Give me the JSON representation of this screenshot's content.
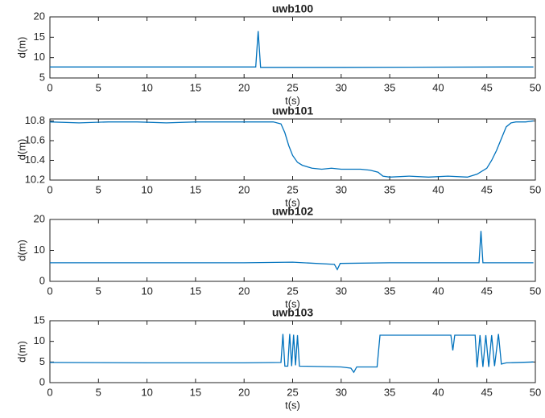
{
  "chart_data": [
    {
      "type": "line",
      "title": "uwb100",
      "x_label": "t(s)",
      "y_label": "d(m)",
      "xlim": [
        0,
        50
      ],
      "ylim": [
        5,
        20
      ],
      "xticks": [
        0,
        5,
        10,
        15,
        20,
        25,
        30,
        35,
        40,
        45,
        50
      ],
      "yticks": [
        5,
        10,
        15,
        20
      ],
      "series": [
        {
          "color": "#0072bd",
          "x": [
            0,
            10,
            21.2,
            21.45,
            21.7,
            30,
            47,
            49.8
          ],
          "values": [
            7.7,
            7.7,
            7.7,
            16.5,
            7.6,
            7.6,
            7.7,
            7.7
          ]
        }
      ]
    },
    {
      "type": "line",
      "title": "uwb101",
      "x_label": "t(s)",
      "y_label": "d(m)",
      "xlim": [
        0,
        50
      ],
      "ylim": [
        10.2,
        10.82
      ],
      "xticks": [
        0,
        5,
        10,
        15,
        20,
        25,
        30,
        35,
        40,
        45,
        50
      ],
      "yticks": [
        10.2,
        10.4,
        10.6,
        10.8
      ],
      "series": [
        {
          "color": "#0072bd",
          "x": [
            0,
            3,
            6,
            9,
            12,
            15,
            18,
            21,
            23,
            23.8,
            24.2,
            24.6,
            25,
            25.5,
            26,
            27,
            28,
            29,
            30,
            31,
            32,
            33,
            33.8,
            34.3,
            35,
            37,
            39,
            41,
            43,
            44,
            45,
            45.5,
            46,
            46.5,
            47,
            47.5,
            48,
            49,
            49.8
          ],
          "values": [
            10.79,
            10.78,
            10.79,
            10.79,
            10.78,
            10.79,
            10.79,
            10.79,
            10.79,
            10.77,
            10.68,
            10.55,
            10.45,
            10.38,
            10.35,
            10.32,
            10.31,
            10.32,
            10.31,
            10.31,
            10.31,
            10.3,
            10.28,
            10.24,
            10.23,
            10.24,
            10.23,
            10.24,
            10.23,
            10.26,
            10.32,
            10.4,
            10.5,
            10.62,
            10.74,
            10.78,
            10.79,
            10.79,
            10.8
          ]
        }
      ]
    },
    {
      "type": "line",
      "title": "uwb102",
      "x_label": "t(s)",
      "y_label": "d(m)",
      "xlim": [
        0,
        50
      ],
      "ylim": [
        0,
        20
      ],
      "xticks": [
        0,
        5,
        10,
        15,
        20,
        25,
        30,
        35,
        40,
        45,
        50
      ],
      "yticks": [
        0,
        10,
        20
      ],
      "series": [
        {
          "color": "#0072bd",
          "x": [
            0,
            10,
            20,
            25,
            29.3,
            29.6,
            29.9,
            35,
            44.2,
            44.4,
            44.6,
            49.8
          ],
          "values": [
            6,
            6,
            6,
            6.2,
            5.5,
            3.8,
            5.8,
            6,
            6,
            16.3,
            6,
            6
          ]
        }
      ]
    },
    {
      "type": "line",
      "title": "uwb103",
      "x_label": "t(s)",
      "y_label": "d(m)",
      "xlim": [
        0,
        50
      ],
      "ylim": [
        0,
        15
      ],
      "xticks": [
        0,
        5,
        10,
        15,
        20,
        25,
        30,
        35,
        40,
        45,
        50
      ],
      "yticks": [
        0,
        5,
        10,
        15
      ],
      "series": [
        {
          "color": "#0072bd",
          "x": [
            0,
            10,
            20,
            23.8,
            24,
            24.2,
            24.5,
            24.7,
            24.9,
            25.1,
            25.3,
            25.5,
            25.7,
            28,
            30,
            31,
            31.3,
            31.6,
            33.7,
            34,
            41.3,
            41.5,
            41.7,
            43.8,
            44,
            44.3,
            44.6,
            44.9,
            45.2,
            45.5,
            45.8,
            46.2,
            46.5,
            47,
            49.8
          ],
          "values": [
            4.9,
            4.8,
            4.8,
            4.9,
            11.8,
            4,
            4,
            11.8,
            4,
            11.6,
            4.2,
            11.5,
            4,
            3.9,
            3.8,
            3.5,
            2.5,
            3.8,
            3.8,
            11.5,
            11.5,
            7.8,
            11.5,
            11.5,
            3.7,
            11.5,
            3.8,
            11.5,
            3.8,
            11.5,
            4,
            11.8,
            4.5,
            4.8,
            5
          ]
        }
      ]
    }
  ]
}
